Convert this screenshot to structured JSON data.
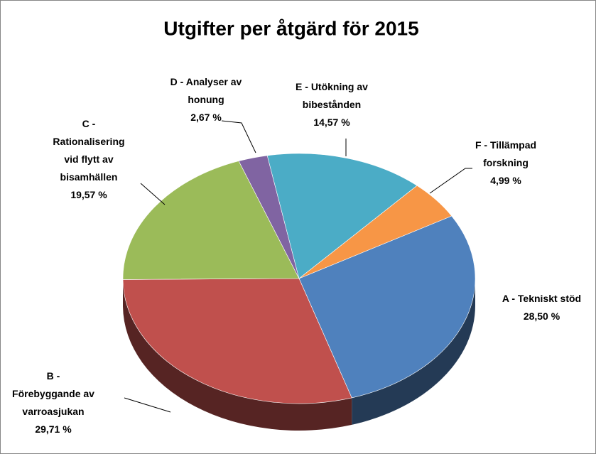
{
  "chart_data": {
    "type": "pie",
    "title": "Utgifter per åtgärd för 2015",
    "categories": [
      "A - Tekniskt stöd",
      "B -\nFörebyggande av\nvarroasjukan",
      "C -\nRationalisering\nvid flytt av\nbisamhällen",
      "D - Analyser av\nhonung",
      "E - Utökning av\nbibestånden",
      "F - Tillämpad\nforskning"
    ],
    "values": [
      28.5,
      29.71,
      19.57,
      2.67,
      14.57,
      4.99
    ],
    "value_labels": [
      "28,50 %",
      "29,71 %",
      "19,57 %",
      "2,67 %",
      "14,57 %",
      "4,99 %"
    ],
    "colors": [
      "#4f81bd",
      "#c0504d",
      "#9bbb59",
      "#8064a2",
      "#4bacc6",
      "#f79646"
    ]
  }
}
